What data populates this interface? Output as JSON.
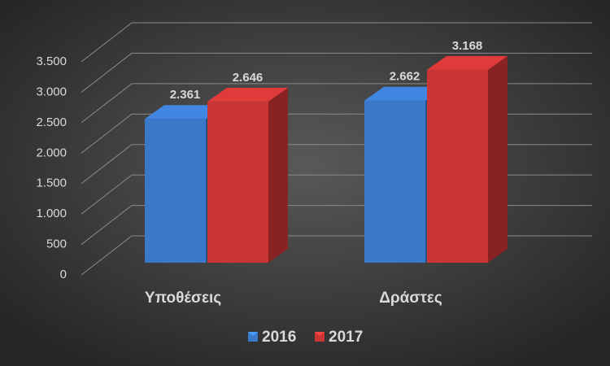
{
  "chart_data": {
    "type": "bar3d",
    "categories": [
      "Υποθέσεις",
      "Δράστες"
    ],
    "series": [
      {
        "name": "2016",
        "color": "#3a78c9",
        "values": [
          2361,
          2662
        ],
        "value_labels": [
          "2.361",
          "2.662"
        ]
      },
      {
        "name": "2017",
        "color": "#c93434",
        "values": [
          2646,
          3168
        ],
        "value_labels": [
          "2.646",
          "3.168"
        ]
      }
    ],
    "ylim": [
      0,
      3500
    ],
    "yticks": [
      0,
      500,
      {
        "value": 1000,
        "label": "1.000"
      },
      {
        "value": 1500,
        "label": "1.500"
      },
      {
        "value": 2000,
        "label": "2.000"
      },
      {
        "value": 2500,
        "label": "2.500"
      },
      {
        "value": 3000,
        "label": "3.000"
      },
      {
        "value": 3500,
        "label": "3.500"
      }
    ],
    "grid": true,
    "legend": "bottom"
  }
}
